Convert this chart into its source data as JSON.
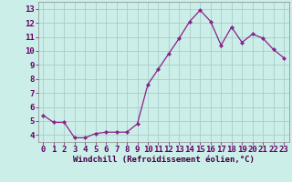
{
  "x": [
    0,
    1,
    2,
    3,
    4,
    5,
    6,
    7,
    8,
    9,
    10,
    11,
    12,
    13,
    14,
    15,
    16,
    17,
    18,
    19,
    20,
    21,
    22,
    23
  ],
  "y": [
    5.4,
    4.9,
    4.9,
    3.8,
    3.8,
    4.1,
    4.2,
    4.2,
    4.2,
    4.8,
    7.6,
    8.7,
    9.8,
    10.9,
    12.1,
    12.9,
    12.1,
    10.4,
    11.7,
    10.6,
    11.2,
    10.9,
    10.1,
    9.5
  ],
  "line_color": "#882288",
  "marker": "D",
  "marker_size": 2.2,
  "bg_color": "#cceee8",
  "grid_color": "#aacccc",
  "xlabel": "Windchill (Refroidissement éolien,°C)",
  "xlabel_fontsize": 6.5,
  "tick_fontsize": 6.5,
  "ylim": [
    3.5,
    13.5
  ],
  "yticks": [
    4,
    5,
    6,
    7,
    8,
    9,
    10,
    11,
    12,
    13
  ],
  "xticks": [
    0,
    1,
    2,
    3,
    4,
    5,
    6,
    7,
    8,
    9,
    10,
    11,
    12,
    13,
    14,
    15,
    16,
    17,
    18,
    19,
    20,
    21,
    22,
    23
  ],
  "xlim": [
    -0.5,
    23.5
  ]
}
